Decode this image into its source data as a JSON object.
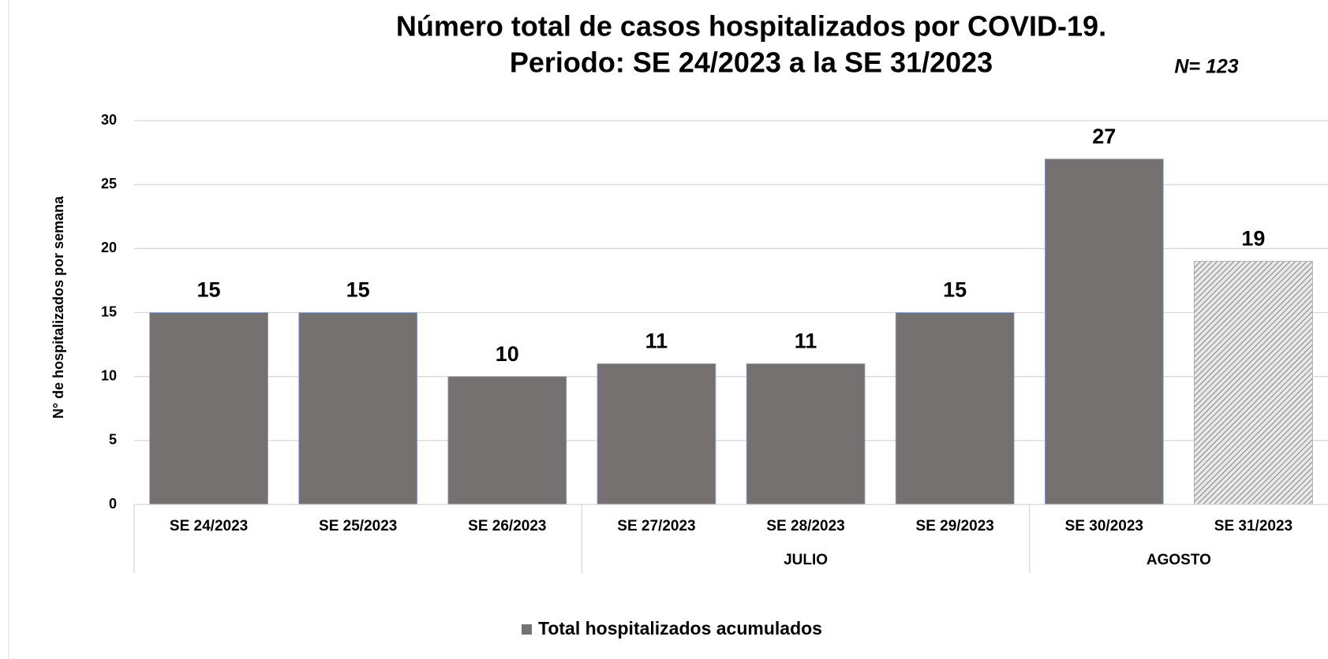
{
  "chart_data": {
    "type": "bar",
    "title": "Número total de casos hospitalizados por COVID-19.",
    "subtitle": "Periodo:  SE 24/2023 a la SE 31/2023",
    "annotation": "N= 123",
    "y_label": "N° de hospitalizados por semana",
    "categories": [
      "SE 24/2023",
      "SE 25/2023",
      "SE 26/2023",
      "SE 27/2023",
      "SE 28/2023",
      "SE 29/2023",
      "SE 30/2023",
      "SE 31/2023"
    ],
    "months": [
      null,
      null,
      null,
      "JULIO",
      "JULIO",
      "JULIO",
      "AGOSTO",
      "AGOSTO"
    ],
    "series": [
      {
        "name": "Total hospitalizados acumulados",
        "color": "#767171",
        "values": [
          15,
          15,
          10,
          11,
          11,
          15,
          27,
          19
        ],
        "bar_styles": [
          "solid",
          "solid",
          "solid",
          "solid",
          "solid",
          "solid",
          "solid",
          "hatched"
        ]
      }
    ],
    "ylim": [
      0,
      30
    ],
    "yticks": [
      0,
      5,
      10,
      15,
      20,
      25,
      30
    ],
    "grid": true,
    "legend": "bottom"
  }
}
